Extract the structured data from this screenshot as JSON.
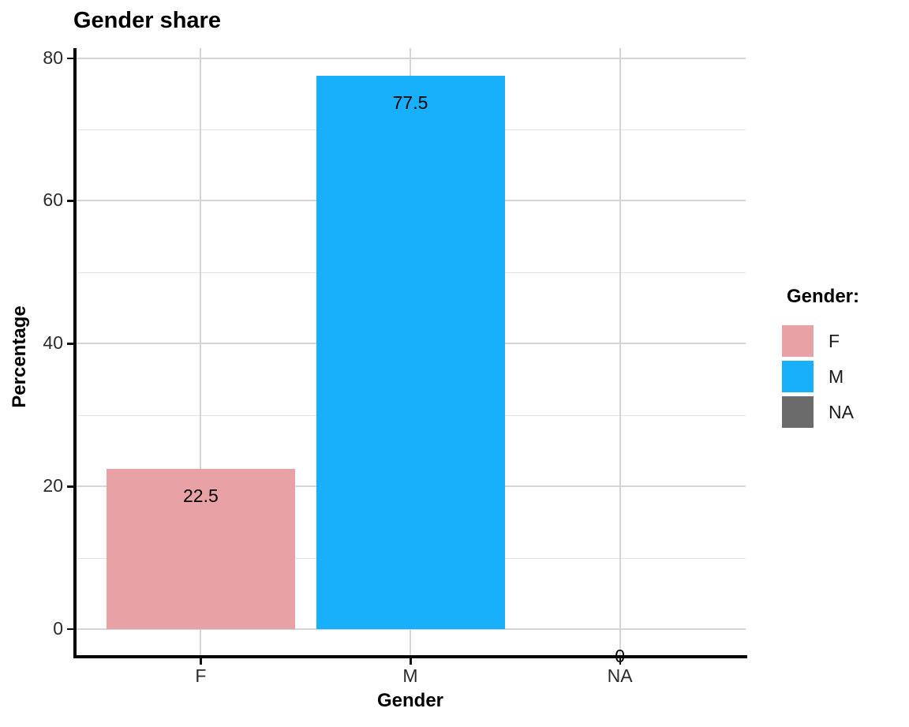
{
  "chart_data": {
    "type": "bar",
    "title": "Gender share",
    "xlabel": "Gender",
    "ylabel": "Percentage",
    "categories": [
      "F",
      "M",
      "NA"
    ],
    "values": [
      22.5,
      77.5,
      0
    ],
    "bar_labels": [
      "22.5",
      "77.5",
      "0"
    ],
    "bar_colors": [
      "#E8A2A6",
      "#18AFFB",
      "#6B6B6B"
    ],
    "y_ticks": [
      0,
      20,
      40,
      60,
      80
    ],
    "y_minor_ticks": [
      10,
      30,
      50,
      70
    ],
    "ylim": [
      0,
      80
    ],
    "grid": "on",
    "legend": {
      "title": "Gender:",
      "position": "right",
      "entries": [
        {
          "label": "F",
          "color": "#E8A2A6"
        },
        {
          "label": "M",
          "color": "#18AFFB"
        },
        {
          "label": "NA",
          "color": "#6B6B6B"
        }
      ]
    },
    "colors": {
      "background": "#ffffff",
      "axis": "#000000",
      "grid_major": "#d5d5d5",
      "grid_minor": "#e4e4e4",
      "tick_text": "#2b2b2b"
    }
  }
}
